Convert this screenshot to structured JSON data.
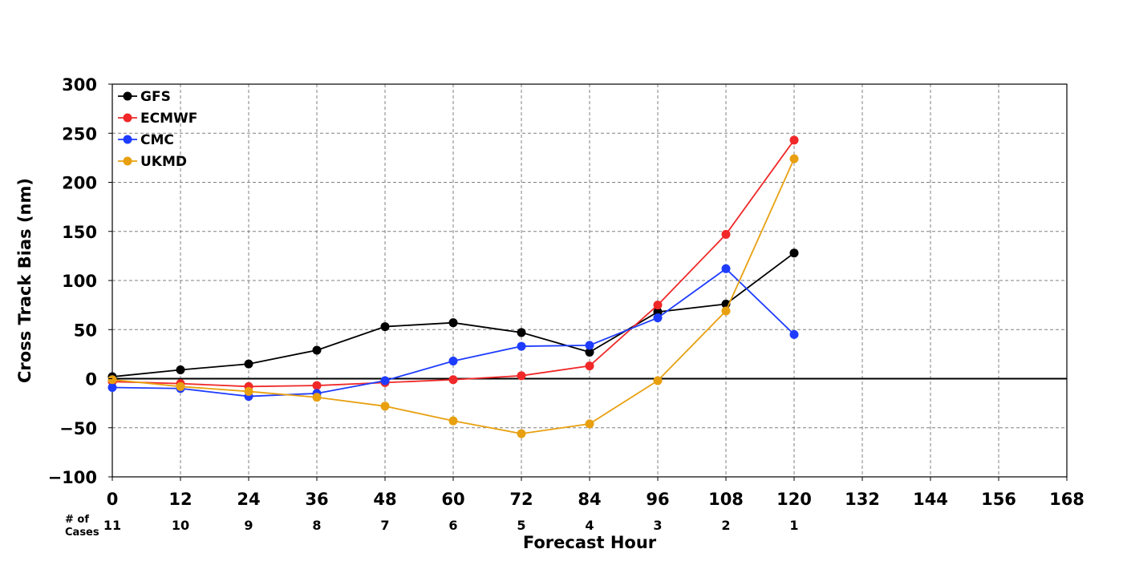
{
  "chart_data": {
    "type": "line",
    "xlabel": "Forecast Hour",
    "ylabel": "Cross Track Bias (nm)",
    "xlim": [
      0,
      168
    ],
    "ylim": [
      -100,
      300
    ],
    "x_ticks": [
      0,
      12,
      24,
      36,
      48,
      60,
      72,
      84,
      96,
      108,
      120,
      132,
      144,
      156,
      168
    ],
    "y_ticks": [
      -100,
      -50,
      0,
      50,
      100,
      150,
      200,
      250,
      300
    ],
    "x_tick_labels": [
      "0",
      "12",
      "24",
      "36",
      "48",
      "60",
      "72",
      "84",
      "96",
      "108",
      "120",
      "132",
      "144",
      "156",
      "168"
    ],
    "y_tick_labels": [
      "−100",
      "−50",
      "0",
      "50",
      "100",
      "150",
      "200",
      "250",
      "300"
    ],
    "grid": true,
    "legend_position": "top-left",
    "cases_header": [
      "# of",
      "Cases"
    ],
    "cases": [
      {
        "x": 0,
        "n": "11"
      },
      {
        "x": 12,
        "n": "10"
      },
      {
        "x": 24,
        "n": "9"
      },
      {
        "x": 36,
        "n": "8"
      },
      {
        "x": 48,
        "n": "7"
      },
      {
        "x": 60,
        "n": "6"
      },
      {
        "x": 72,
        "n": "5"
      },
      {
        "x": 84,
        "n": "4"
      },
      {
        "x": 96,
        "n": "3"
      },
      {
        "x": 108,
        "n": "2"
      },
      {
        "x": 120,
        "n": "1"
      }
    ],
    "x": [
      0,
      12,
      24,
      36,
      48,
      60,
      72,
      84,
      96,
      108,
      120
    ],
    "series": [
      {
        "name": "GFS",
        "color": "#000000",
        "values": [
          2,
          9,
          15,
          29,
          53,
          57,
          47,
          27,
          68,
          76,
          128
        ]
      },
      {
        "name": "ECMWF",
        "color": "#f02828",
        "values": [
          -3,
          -5,
          -8,
          -7,
          -4,
          -1,
          3,
          13,
          75,
          147,
          243
        ]
      },
      {
        "name": "CMC",
        "color": "#1e3cff",
        "values": [
          -9,
          -10,
          -18,
          -15,
          -2,
          18,
          33,
          34,
          62,
          112,
          45
        ]
      },
      {
        "name": "UKMD",
        "color": "#e8a010",
        "values": [
          -1,
          -8,
          -13,
          -19,
          -28,
          -43,
          -56,
          -46,
          -2,
          69,
          224
        ]
      }
    ]
  }
}
